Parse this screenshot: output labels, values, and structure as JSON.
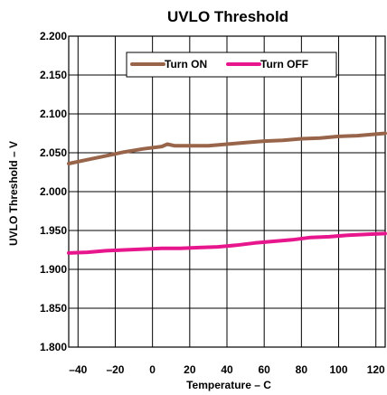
{
  "chart_data": {
    "type": "line",
    "title": "UVLO Threshold",
    "xlabel": "Temperature –  C",
    "ylabel": "UVLO Threshold – V",
    "xlim": [
      -45,
      125
    ],
    "ylim": [
      1.8,
      2.2
    ],
    "x_ticks": [
      -40,
      -20,
      0,
      20,
      40,
      60,
      80,
      100,
      120
    ],
    "x_tick_labels": [
      "–40",
      "–20",
      "0",
      "20",
      "40",
      "60",
      "80",
      "100",
      "120"
    ],
    "y_ticks": [
      1.8,
      1.85,
      1.9,
      1.95,
      2.0,
      2.05,
      2.1,
      2.15,
      2.2
    ],
    "y_tick_labels": [
      "1.800",
      "1.850",
      "1.900",
      "1.950",
      "2.000",
      "2.050",
      "2.100",
      "2.150",
      "2.200"
    ],
    "x_grid": [
      -40,
      -20,
      0,
      20,
      40,
      60,
      80,
      100,
      120
    ],
    "y_grid": [
      1.85,
      1.9,
      1.95,
      2.0,
      2.05,
      2.1,
      2.15
    ],
    "legend_position": "top-center",
    "series": [
      {
        "name": "Turn ON",
        "color": "#98654a",
        "x": [
          -45,
          -35,
          -25,
          -15,
          -5,
          5,
          8,
          12,
          20,
          30,
          40,
          50,
          60,
          70,
          80,
          90,
          100,
          110,
          125
        ],
        "y": [
          2.036,
          2.041,
          2.046,
          2.051,
          2.055,
          2.058,
          2.061,
          2.059,
          2.059,
          2.059,
          2.061,
          2.063,
          2.065,
          2.066,
          2.068,
          2.069,
          2.071,
          2.072,
          2.075
        ]
      },
      {
        "name": "Turn OFF",
        "color": "#e8168c",
        "x": [
          -45,
          -35,
          -25,
          -15,
          -5,
          5,
          15,
          25,
          35,
          45,
          55,
          65,
          75,
          85,
          95,
          105,
          115,
          125
        ],
        "y": [
          1.921,
          1.922,
          1.924,
          1.925,
          1.926,
          1.927,
          1.927,
          1.928,
          1.929,
          1.931,
          1.934,
          1.936,
          1.938,
          1.941,
          1.942,
          1.944,
          1.945,
          1.946
        ]
      }
    ]
  }
}
